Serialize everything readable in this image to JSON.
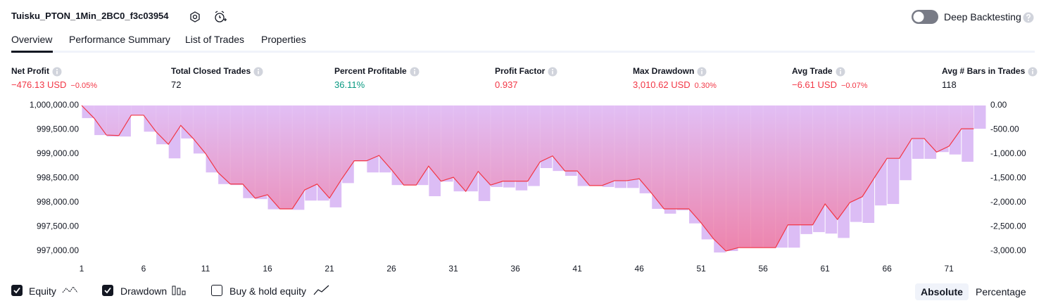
{
  "header": {
    "title": "Tuisku_PTON_1Min_2BC0_f3c03954",
    "deep_backtesting": "Deep Backtesting"
  },
  "tabs": [
    "Overview",
    "Performance Summary",
    "List of Trades",
    "Properties"
  ],
  "metrics": [
    {
      "label": "Net Profit",
      "value": "−476.13 USD",
      "change": "−0.05%",
      "color": "#f23645"
    },
    {
      "label": "Total Closed Trades",
      "value": "72",
      "color": "#131722"
    },
    {
      "label": "Percent Profitable",
      "value": "36.11%",
      "color": "#089981"
    },
    {
      "label": "Profit Factor",
      "value": "0.937",
      "color": "#f23645"
    },
    {
      "label": "Max Drawdown",
      "value": "3,010.62 USD",
      "change": "0.30%",
      "color": "#f23645"
    },
    {
      "label": "Avg Trade",
      "value": "−6.61 USD",
      "change": "−0.07%",
      "color": "#f23645"
    },
    {
      "label": "Avg # Bars in Trades",
      "value": "118",
      "color": "#131722"
    }
  ],
  "chart_data": {
    "type": "combo",
    "x": [
      1,
      2,
      3,
      4,
      5,
      6,
      7,
      8,
      9,
      10,
      11,
      12,
      13,
      14,
      15,
      16,
      17,
      18,
      19,
      20,
      21,
      22,
      23,
      24,
      25,
      26,
      27,
      28,
      29,
      30,
      31,
      32,
      33,
      34,
      35,
      36,
      37,
      38,
      39,
      40,
      41,
      42,
      43,
      44,
      45,
      46,
      47,
      48,
      49,
      50,
      51,
      52,
      53,
      54,
      55,
      56,
      57,
      58,
      59,
      60,
      61,
      62,
      63,
      64,
      65,
      66,
      67,
      68,
      69,
      70,
      71,
      72,
      73
    ],
    "series": [
      {
        "name": "Equity",
        "type": "line",
        "color": "#f23645",
        "checked": true,
        "values": [
          1000000,
          999740,
          999390,
          999380,
          999800,
          999800,
          999460,
          999200,
          999590,
          999320,
          999010,
          998620,
          998380,
          998380,
          998090,
          998160,
          997870,
          997870,
          998260,
          998380,
          998090,
          998490,
          998860,
          998860,
          998970,
          998680,
          998360,
          998360,
          998750,
          998440,
          998520,
          998230,
          998640,
          998360,
          998440,
          998440,
          998440,
          998840,
          998960,
          998650,
          998650,
          998350,
          998350,
          998450,
          998450,
          998490,
          998190,
          997870,
          997870,
          997870,
          997580,
          997250,
          997000,
          997070,
          997070,
          997070,
          997070,
          997540,
          997540,
          997540,
          997970,
          997650,
          998000,
          998120,
          998520,
          998910,
          998910,
          999320,
          999320,
          999040,
          999160,
          999520,
          999520
        ]
      },
      {
        "name": "Drawdown",
        "type": "bar",
        "axis": "y2",
        "color": "#dcbdf5",
        "checked": true,
        "values": [
          -260,
          -610,
          -640,
          -640,
          -200,
          -540,
          -800,
          -1090,
          -680,
          -990,
          -1380,
          -1620,
          -1640,
          -1910,
          -1930,
          -2140,
          -2140,
          -2150,
          -1960,
          -1960,
          -2100,
          -1600,
          -1150,
          -1380,
          -1380,
          -1640,
          -1640,
          -1640,
          -1870,
          -1570,
          -1770,
          -1770,
          -1970,
          -1680,
          -1690,
          -1750,
          -1660,
          -1290,
          -1350,
          -1450,
          -1660,
          -1660,
          -1680,
          -1700,
          -1700,
          -1810,
          -2130,
          -2230,
          -2160,
          -2430,
          -2760,
          -3030,
          -3000,
          -2930,
          -2930,
          -2930,
          -2930,
          -2930,
          -2650,
          -2610,
          -2640,
          -2730,
          -2400,
          -2420,
          -2060,
          -2030,
          -1540,
          -1100,
          -1100,
          -960,
          -1010,
          -1160,
          -480
        ]
      }
    ],
    "xlim": [
      1,
      74
    ],
    "xticks": [
      1,
      6,
      11,
      16,
      21,
      26,
      31,
      36,
      41,
      46,
      51,
      56,
      61,
      66,
      71
    ],
    "ylim": [
      997000,
      1000000
    ],
    "yticks": [
      {
        "value": 1000000,
        "label": "1,000,000.00"
      },
      {
        "value": 999500,
        "label": "999,500.00"
      },
      {
        "value": 999000,
        "label": "999,000.00"
      },
      {
        "value": 998500,
        "label": "998,500.00"
      },
      {
        "value": 998000,
        "label": "998,000.00"
      },
      {
        "value": 997500,
        "label": "997,500.00"
      },
      {
        "value": 997000,
        "label": "997,000.00"
      }
    ],
    "y2lim": [
      -3000,
      0
    ],
    "y2ticks": [
      {
        "value": 0,
        "label": "0.00"
      },
      {
        "value": -500,
        "label": "-500.00"
      },
      {
        "value": -1000,
        "label": "-1,000.00"
      },
      {
        "value": -1500,
        "label": "-1,500.00"
      },
      {
        "value": -2000,
        "label": "-2,000.00"
      },
      {
        "value": -2500,
        "label": "-2,500.00"
      },
      {
        "value": -3000,
        "label": "-3,000.00"
      }
    ]
  },
  "buy_hold": {
    "label": "Buy & hold equity",
    "checked": false
  },
  "scale_modes": {
    "options": [
      "Absolute",
      "Percentage"
    ],
    "selected": 0
  }
}
